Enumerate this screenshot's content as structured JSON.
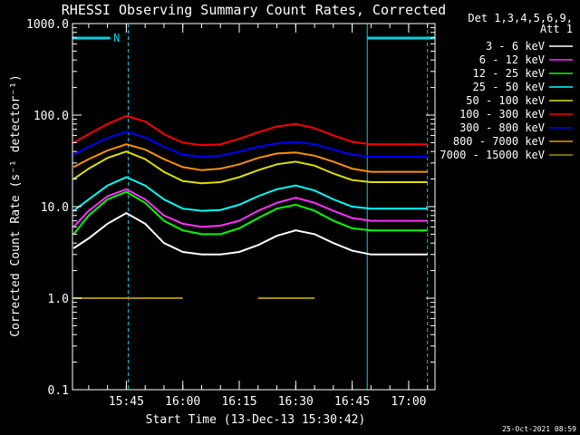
{
  "chart_data": {
    "type": "line",
    "title": "RHESSI Observing Summary Count Rates, Corrected",
    "xlabel": "Start Time (13-Dec-13 15:30:42)",
    "ylabel": "Corrected Count Rate (s⁻¹ detector⁻¹)",
    "y_scale": "log",
    "ylim": [
      0.1,
      1000
    ],
    "xlim": [
      "15:30:42",
      "17:07:00"
    ],
    "x_ticks": [
      "15:45",
      "16:00",
      "16:15",
      "16:30",
      "16:45",
      "17:00"
    ],
    "y_ticks": [
      "0.1",
      "1.0",
      "10.0",
      "100.0",
      "1000.0"
    ],
    "legend": {
      "placement": "right",
      "header": [
        "Det 1,3,4,5,6,9,",
        "Att 1"
      ]
    },
    "x": [
      "15:31",
      "15:35",
      "15:40",
      "15:45",
      "15:50",
      "15:55",
      "16:00",
      "16:05",
      "16:10",
      "16:15",
      "16:20",
      "16:25",
      "16:30",
      "16:35",
      "16:40",
      "16:45",
      "16:50",
      "16:55",
      "17:00",
      "17:05"
    ],
    "series": [
      {
        "name": "3 - 6 keV",
        "color": "#ffffff",
        "values": [
          3.5,
          4.5,
          6.5,
          8.5,
          6.5,
          4.0,
          3.2,
          3.0,
          3.0,
          3.2,
          3.8,
          4.8,
          5.5,
          5.0,
          4.0,
          3.3,
          3.0,
          3.0,
          3.0,
          3.0
        ]
      },
      {
        "name": "6 - 12 keV",
        "color": "#ff30ff",
        "values": [
          6.0,
          9.0,
          13.0,
          15.5,
          12.0,
          8.0,
          6.5,
          6.0,
          6.2,
          7.0,
          9.0,
          11.0,
          12.5,
          11.0,
          9.0,
          7.5,
          7.0,
          7.0,
          7.0,
          7.0
        ]
      },
      {
        "name": "12 - 25 keV",
        "color": "#00ff00",
        "values": [
          5.0,
          8.0,
          12.0,
          14.5,
          11.0,
          7.0,
          5.5,
          5.0,
          5.0,
          5.8,
          7.5,
          9.5,
          10.5,
          9.0,
          7.0,
          5.8,
          5.5,
          5.5,
          5.5,
          5.5
        ]
      },
      {
        "name": "25 - 50 keV",
        "color": "#00ffff",
        "values": [
          9.0,
          12.0,
          17.0,
          21.0,
          17.0,
          12.0,
          9.5,
          9.0,
          9.2,
          10.5,
          13.0,
          15.5,
          17.0,
          15.0,
          12.0,
          10.0,
          9.5,
          9.5,
          9.5,
          9.5
        ]
      },
      {
        "name": "50 - 100 keV",
        "color": "#e0e000",
        "values": [
          20.0,
          26.0,
          34.0,
          40.0,
          33.0,
          24.0,
          19.0,
          18.0,
          18.5,
          21.0,
          25.0,
          29.0,
          31.0,
          28.0,
          23.0,
          19.5,
          18.5,
          18.5,
          18.5,
          18.5
        ]
      },
      {
        "name": "100 - 300 keV",
        "color": "#ff0000",
        "values": [
          50.0,
          62.0,
          80.0,
          98.0,
          85.0,
          62.0,
          50.0,
          47.0,
          48.0,
          55.0,
          65.0,
          75.0,
          80.0,
          72.0,
          60.0,
          51.0,
          48.0,
          48.0,
          48.0,
          48.0
        ]
      },
      {
        "name": "300 - 800 keV",
        "color": "#0000ff",
        "values": [
          37.0,
          45.0,
          56.0,
          66.0,
          57.0,
          45.0,
          37.0,
          35.0,
          36.0,
          40.0,
          45.0,
          49.0,
          51.0,
          48.0,
          42.0,
          37.0,
          35.0,
          35.0,
          35.0,
          35.0
        ]
      },
      {
        "name": "800 - 7000 keV",
        "color": "#ff9000",
        "values": [
          27.0,
          33.0,
          41.0,
          48.0,
          42.0,
          33.0,
          27.0,
          25.0,
          26.0,
          29.0,
          34.0,
          38.0,
          39.0,
          36.0,
          31.0,
          26.0,
          24.0,
          24.0,
          24.0,
          24.0
        ]
      },
      {
        "name": "7000 - 15000 keV",
        "color": "#a09000",
        "values": [
          1.0,
          1.0,
          1.0,
          1.0,
          1.0,
          1.0,
          1.0,
          null,
          null,
          null,
          1.0,
          1.0,
          1.0,
          1.0,
          null,
          null,
          null,
          null,
          null,
          null
        ]
      }
    ],
    "intervals": [
      {
        "kind": "night",
        "color": "#00d0e0",
        "start": "15:30:42",
        "end": "15:40:45",
        "label": "N"
      },
      {
        "kind": "night",
        "color": "#00d0e0",
        "start": "16:49:00",
        "end": "17:07:00",
        "label": ""
      }
    ],
    "markers": {
      "color": "#00d0e0",
      "solid": [
        "15:30:42",
        "16:49:00"
      ],
      "dashed": [
        "15:45:30",
        "17:05:00"
      ]
    },
    "footer_stamp": "25-Oct-2021 08:59"
  }
}
